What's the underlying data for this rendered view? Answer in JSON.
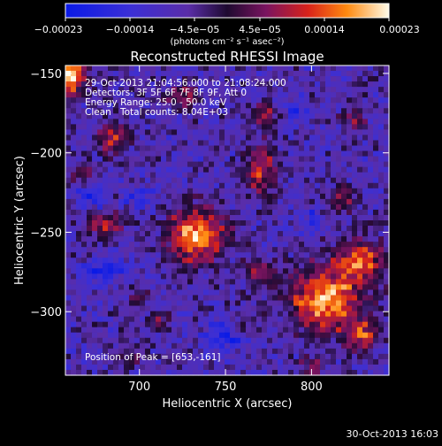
{
  "colorbar": {
    "ticks": [
      "−0.00023",
      "−0.00014",
      "−4.5e−05",
      "4.5e−05",
      "0.00014",
      "0.00023"
    ],
    "unit": "(photons cm⁻² s⁻¹ asec⁻²)",
    "range": [
      -0.00023,
      0.00023
    ]
  },
  "chart_data": {
    "type": "heatmap",
    "title": "Reconstructed RHESSI Image",
    "xlabel": "Heliocentric X (arcsec)",
    "ylabel": "Heliocentric Y (arcsec)",
    "xlim": [
      657,
      845
    ],
    "ylim": [
      -340,
      -145
    ],
    "xticks": [
      700,
      750,
      800
    ],
    "yticks": [
      -150,
      -200,
      -250,
      -300
    ],
    "annotations": {
      "time_range": "29-Oct-2013 21:04:56.000 to 21:08:24.000",
      "detectors": "Detectors: 3F 5F 6F 7F 8F 9F, Att 0",
      "energy": "Energy Range: 25.0 - 50.0 keV",
      "algorithm": "Clean",
      "counts": "Total counts: 8.04E+03",
      "peak": "Position of Peak = [653,-161]"
    },
    "peak_position": [
      653,
      -161
    ],
    "sources": [
      {
        "x": 660,
        "y": -152,
        "rx": 6,
        "ry": 8,
        "amp": 1.0
      },
      {
        "x": 685,
        "y": -190,
        "rx": 6,
        "ry": 7,
        "amp": 0.65
      },
      {
        "x": 665,
        "y": -212,
        "rx": 5,
        "ry": 4,
        "amp": 0.4
      },
      {
        "x": 680,
        "y": -245,
        "rx": 7,
        "ry": 5,
        "amp": 0.65
      },
      {
        "x": 733,
        "y": -252,
        "rx": 12,
        "ry": 12,
        "amp": 0.95
      },
      {
        "x": 770,
        "y": -210,
        "rx": 7,
        "ry": 12,
        "amp": 0.6
      },
      {
        "x": 772,
        "y": -175,
        "rx": 6,
        "ry": 5,
        "amp": 0.45
      },
      {
        "x": 725,
        "y": -165,
        "rx": 6,
        "ry": 6,
        "amp": 0.45
      },
      {
        "x": 770,
        "y": -275,
        "rx": 7,
        "ry": 5,
        "amp": 0.5
      },
      {
        "x": 712,
        "y": -305,
        "rx": 5,
        "ry": 4,
        "amp": 0.4
      },
      {
        "x": 808,
        "y": -293,
        "rx": 14,
        "ry": 14,
        "amp": 0.95
      },
      {
        "x": 828,
        "y": -268,
        "rx": 10,
        "ry": 10,
        "amp": 0.75
      },
      {
        "x": 818,
        "y": -230,
        "rx": 6,
        "ry": 6,
        "amp": 0.45
      },
      {
        "x": 825,
        "y": -178,
        "rx": 5,
        "ry": 6,
        "amp": 0.45
      },
      {
        "x": 830,
        "y": -315,
        "rx": 7,
        "ry": 7,
        "amp": 0.65
      },
      {
        "x": 800,
        "y": -335,
        "rx": 5,
        "ry": 4,
        "amp": 0.45
      },
      {
        "x": 760,
        "y": -310,
        "rx": 6,
        "ry": 4,
        "amp": 0.35
      },
      {
        "x": 695,
        "y": -330,
        "rx": 7,
        "ry": 4,
        "amp": 0.3
      },
      {
        "x": 700,
        "y": -290,
        "rx": 5,
        "ry": 5,
        "amp": 0.35
      },
      {
        "x": 680,
        "y": -275,
        "rx": 8,
        "ry": 5,
        "amp": -0.5
      },
      {
        "x": 700,
        "y": -230,
        "rx": 6,
        "ry": 5,
        "amp": -0.35
      },
      {
        "x": 750,
        "y": -315,
        "rx": 8,
        "ry": 6,
        "amp": -0.45
      },
      {
        "x": 790,
        "y": -175,
        "rx": 6,
        "ry": 6,
        "amp": -0.3
      },
      {
        "x": 800,
        "y": -240,
        "rx": 5,
        "ry": 5,
        "amp": -0.3
      },
      {
        "x": 672,
        "y": -228,
        "rx": 6,
        "ry": 5,
        "amp": -0.3
      }
    ]
  },
  "footer": {
    "timestamp": "30-Oct-2013 16:03"
  }
}
